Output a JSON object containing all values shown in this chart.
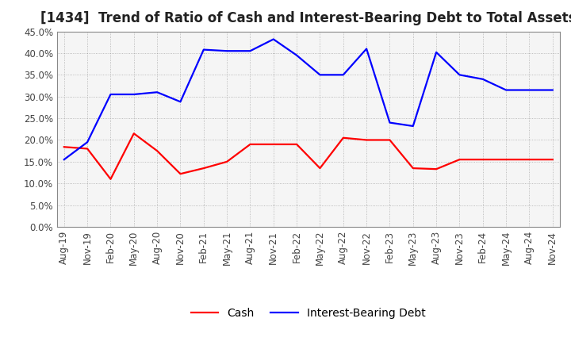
{
  "title": "[1434]  Trend of Ratio of Cash and Interest-Bearing Debt to Total Assets",
  "x_labels": [
    "Aug-19",
    "Nov-19",
    "Feb-20",
    "May-20",
    "Aug-20",
    "Nov-20",
    "Feb-21",
    "May-21",
    "Aug-21",
    "Nov-21",
    "Feb-22",
    "May-22",
    "Aug-22",
    "Nov-22",
    "Feb-23",
    "May-23",
    "Aug-23",
    "Nov-23",
    "Feb-24",
    "May-24",
    "Aug-24",
    "Nov-24"
  ],
  "cash": [
    0.184,
    0.18,
    0.11,
    0.215,
    0.175,
    0.122,
    0.135,
    0.15,
    0.19,
    0.19,
    0.19,
    0.135,
    0.205,
    0.2,
    0.2,
    0.135,
    0.133,
    0.155,
    0.155,
    0.155,
    0.155,
    0.155
  ],
  "interest_bearing_debt": [
    0.155,
    0.195,
    0.305,
    0.305,
    0.31,
    0.288,
    0.408,
    0.405,
    0.405,
    0.432,
    0.395,
    0.35,
    0.35,
    0.41,
    0.24,
    0.232,
    0.402,
    0.35,
    0.34,
    0.315,
    0.315,
    0.315
  ],
  "cash_color": "#ff0000",
  "debt_color": "#0000ff",
  "ylim": [
    0.0,
    0.45
  ],
  "yticks": [
    0.0,
    0.05,
    0.1,
    0.15,
    0.2,
    0.25,
    0.3,
    0.35,
    0.4,
    0.45
  ],
  "grid_color": "#999999",
  "plot_bg_color": "#f5f5f5",
  "fig_bg_color": "#ffffff",
  "legend_cash": "Cash",
  "legend_debt": "Interest-Bearing Debt",
  "title_fontsize": 12,
  "axis_fontsize": 8.5,
  "legend_fontsize": 10,
  "line_width": 1.6
}
